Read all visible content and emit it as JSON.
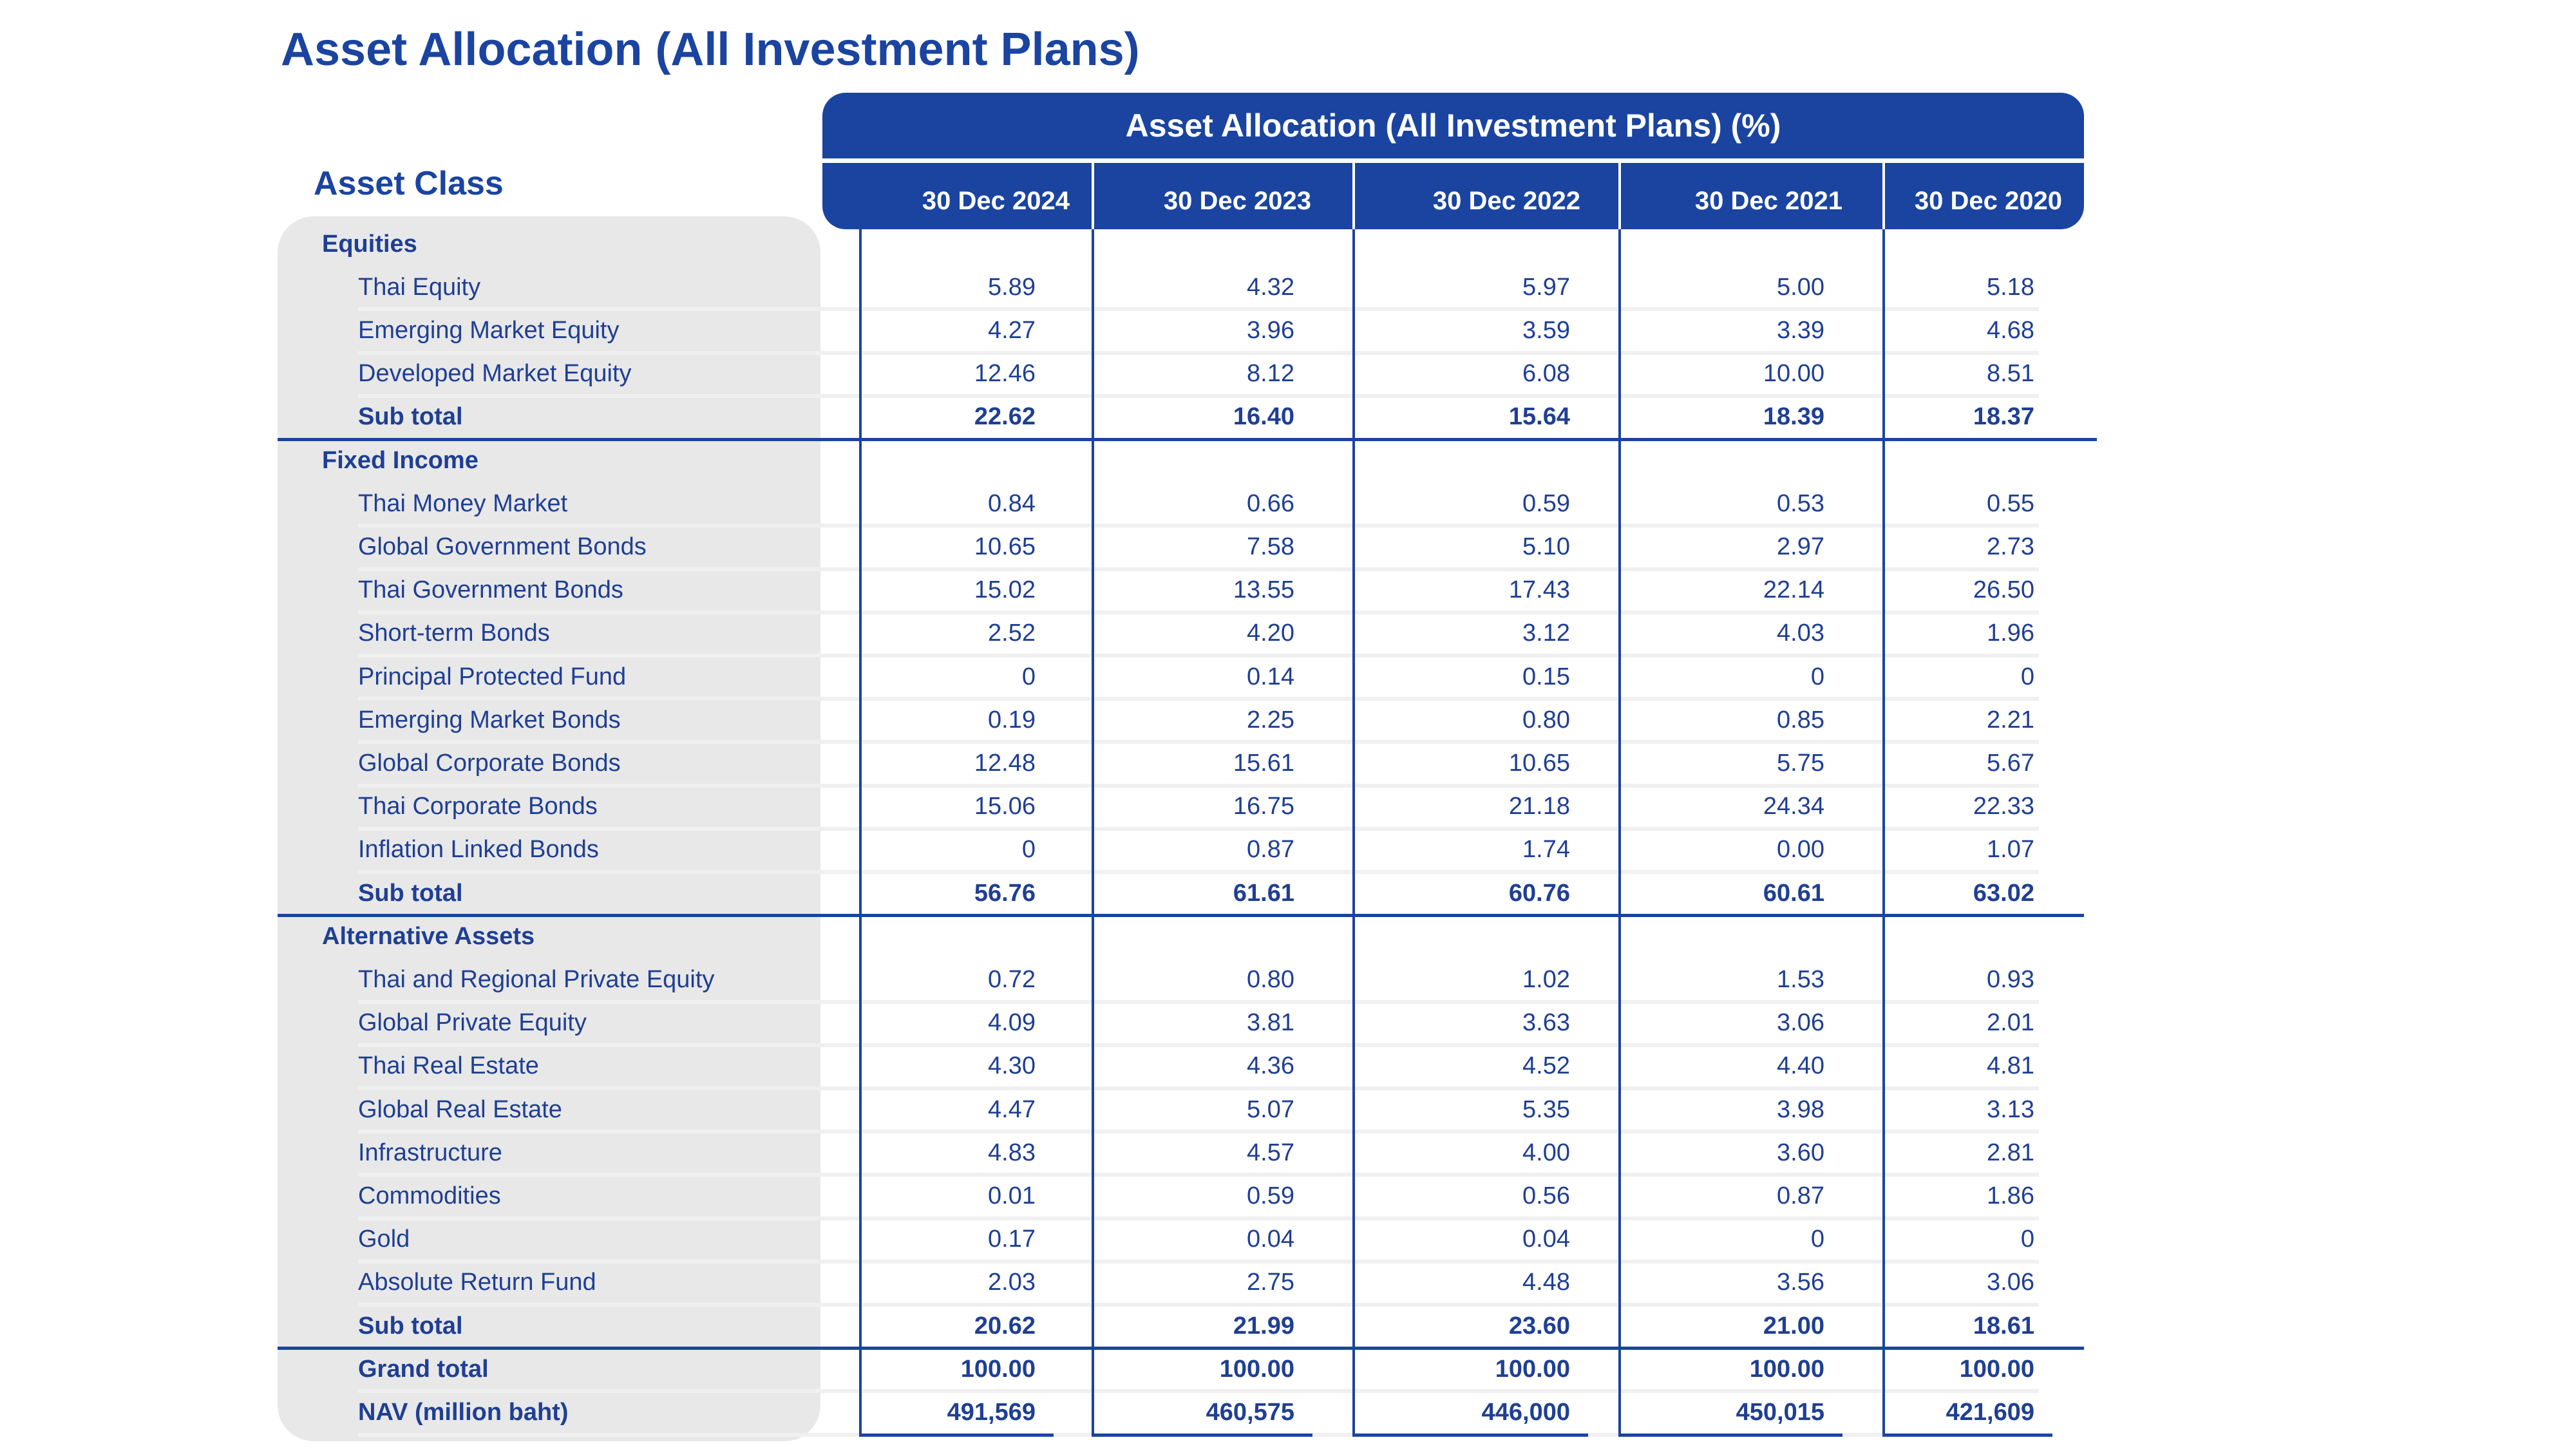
{
  "title": "Asset Allocation (All Investment Plans)",
  "asset_class_label": "Asset Class",
  "table_header": "Asset Allocation (All Investment Plans) (%)",
  "dates": [
    "30 Dec 2024",
    "30 Dec 2023",
    "30 Dec 2022",
    "30 Dec 2021",
    "30 Dec 2020"
  ],
  "colors": {
    "accent": "#1a44a0",
    "text": "#1f3f94",
    "panel": "#e8e8e8"
  },
  "rows": [
    {
      "type": "category",
      "label": "Equities"
    },
    {
      "type": "item",
      "label": "Thai Equity",
      "values": [
        "5.89",
        "4.32",
        "5.97",
        "5.00",
        "5.18"
      ]
    },
    {
      "type": "item",
      "label": "Emerging Market Equity",
      "values": [
        "4.27",
        "3.96",
        "3.59",
        "3.39",
        "4.68"
      ]
    },
    {
      "type": "item",
      "label": "Developed Market Equity",
      "values": [
        "12.46",
        "8.12",
        "6.08",
        "10.00",
        "8.51"
      ]
    },
    {
      "type": "subtotal",
      "label": "Sub total",
      "values": [
        "22.62",
        "16.40",
        "15.64",
        "18.39",
        "18.37"
      ]
    },
    {
      "type": "category",
      "label": "Fixed Income"
    },
    {
      "type": "item",
      "label": "Thai Money Market",
      "values": [
        "0.84",
        "0.66",
        "0.59",
        "0.53",
        "0.55"
      ]
    },
    {
      "type": "item",
      "label": "Global Government Bonds",
      "values": [
        "10.65",
        "7.58",
        "5.10",
        "2.97",
        "2.73"
      ]
    },
    {
      "type": "item",
      "label": "Thai Government Bonds",
      "values": [
        "15.02",
        "13.55",
        "17.43",
        "22.14",
        "26.50"
      ]
    },
    {
      "type": "item",
      "label": "Short-term Bonds",
      "values": [
        "2.52",
        "4.20",
        "3.12",
        "4.03",
        "1.96"
      ]
    },
    {
      "type": "item",
      "label": "Principal Protected Fund",
      "values": [
        "0",
        "0.14",
        "0.15",
        "0",
        "0"
      ]
    },
    {
      "type": "item",
      "label": "Emerging Market Bonds",
      "values": [
        "0.19",
        "2.25",
        "0.80",
        "0.85",
        "2.21"
      ]
    },
    {
      "type": "item",
      "label": "Global Corporate Bonds",
      "values": [
        "12.48",
        "15.61",
        "10.65",
        "5.75",
        "5.67"
      ]
    },
    {
      "type": "item",
      "label": "Thai Corporate Bonds",
      "values": [
        "15.06",
        "16.75",
        "21.18",
        "24.34",
        "22.33"
      ]
    },
    {
      "type": "item",
      "label": "Inflation Linked Bonds",
      "values": [
        "0",
        "0.87",
        "1.74",
        "0.00",
        "1.07"
      ]
    },
    {
      "type": "subtotal",
      "label": "Sub total",
      "values": [
        "56.76",
        "61.61",
        "60.76",
        "60.61",
        "63.02"
      ]
    },
    {
      "type": "category",
      "label": "Alternative Assets"
    },
    {
      "type": "item",
      "label": "Thai and Regional Private Equity",
      "values": [
        "0.72",
        "0.80",
        "1.02",
        "1.53",
        "0.93"
      ]
    },
    {
      "type": "item",
      "label": "Global Private Equity",
      "values": [
        "4.09",
        "3.81",
        "3.63",
        "3.06",
        "2.01"
      ]
    },
    {
      "type": "item",
      "label": "Thai Real Estate",
      "values": [
        "4.30",
        "4.36",
        "4.52",
        "4.40",
        "4.81"
      ]
    },
    {
      "type": "item",
      "label": "Global Real Estate",
      "values": [
        "4.47",
        "5.07",
        "5.35",
        "3.98",
        "3.13"
      ]
    },
    {
      "type": "item",
      "label": "Infrastructure",
      "values": [
        "4.83",
        "4.57",
        "4.00",
        "3.60",
        "2.81"
      ]
    },
    {
      "type": "item",
      "label": "Commodities",
      "values": [
        "0.01",
        "0.59",
        "0.56",
        "0.87",
        "1.86"
      ]
    },
    {
      "type": "item",
      "label": "Gold",
      "values": [
        "0.17",
        "0.04",
        "0.04",
        "0",
        "0"
      ]
    },
    {
      "type": "item",
      "label": "Absolute Return Fund",
      "values": [
        "2.03",
        "2.75",
        "4.48",
        "3.56",
        "3.06"
      ]
    },
    {
      "type": "subtotal",
      "label": "Sub total",
      "values": [
        "20.62",
        "21.99",
        "23.60",
        "21.00",
        "18.61"
      ]
    },
    {
      "type": "total",
      "label": "Grand total",
      "values": [
        "100.00",
        "100.00",
        "100.00",
        "100.00",
        "100.00"
      ]
    },
    {
      "type": "total",
      "label": "NAV (million baht)",
      "values": [
        "491,569",
        "460,575",
        "446,000",
        "450,015",
        "421,609"
      ]
    }
  ]
}
